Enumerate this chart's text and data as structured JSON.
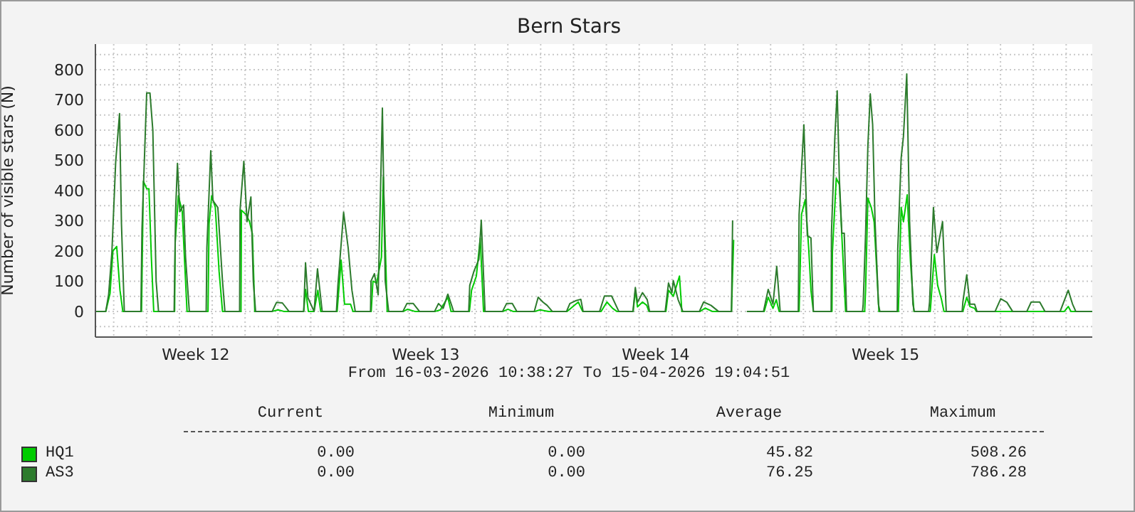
{
  "chart_data": {
    "type": "line",
    "title": "Bern Stars",
    "ylabel": "Number of visible stars (N)",
    "xlim": [
      "2026-03-16T10:38",
      "2026-04-15T19:04"
    ],
    "xticks": [
      {
        "value": "2026-03-17T00:00",
        "label": null
      },
      {
        "value": "2026-03-18T00:00",
        "label": null
      },
      {
        "value": "2026-03-19T00:00",
        "label": null
      },
      {
        "value": "2026-03-19T12:00",
        "label": "Week 12"
      },
      {
        "value": "2026-03-20T00:00",
        "label": null
      },
      {
        "value": "2026-03-21T00:00",
        "label": null
      },
      {
        "value": "2026-03-22T00:00",
        "label": null
      },
      {
        "value": "2026-03-23T00:00",
        "label": null
      },
      {
        "value": "2026-03-24T00:00",
        "label": null
      },
      {
        "value": "2026-03-25T00:00",
        "label": null
      },
      {
        "value": "2026-03-26T00:00",
        "label": null
      },
      {
        "value": "2026-03-26T12:00",
        "label": "Week 13"
      },
      {
        "value": "2026-03-27T00:00",
        "label": null
      },
      {
        "value": "2026-03-28T00:00",
        "label": null
      },
      {
        "value": "2026-03-29T00:00",
        "label": null
      },
      {
        "value": "2026-03-30T00:00",
        "label": null
      },
      {
        "value": "2026-03-31T00:00",
        "label": null
      },
      {
        "value": "2026-04-01T00:00",
        "label": null
      },
      {
        "value": "2026-04-02T00:00",
        "label": null
      },
      {
        "value": "2026-04-02T12:00",
        "label": "Week 14"
      },
      {
        "value": "2026-04-03T00:00",
        "label": null
      },
      {
        "value": "2026-04-04T00:00",
        "label": null
      },
      {
        "value": "2026-04-05T00:00",
        "label": null
      },
      {
        "value": "2026-04-06T00:00",
        "label": null
      },
      {
        "value": "2026-04-07T00:00",
        "label": null
      },
      {
        "value": "2026-04-08T00:00",
        "label": null
      },
      {
        "value": "2026-04-09T00:00",
        "label": null
      },
      {
        "value": "2026-04-09T12:00",
        "label": "Week 15"
      },
      {
        "value": "2026-04-10T00:00",
        "label": null
      },
      {
        "value": "2026-04-11T00:00",
        "label": null
      },
      {
        "value": "2026-04-12T00:00",
        "label": null
      },
      {
        "value": "2026-04-13T00:00",
        "label": null
      },
      {
        "value": "2026-04-14T00:00",
        "label": null
      },
      {
        "value": "2026-04-15T00:00",
        "label": null
      }
    ],
    "ylim": [
      -85,
      885
    ],
    "yticks": [
      {
        "value": -50,
        "label": null
      },
      0,
      {
        "value": 50,
        "label": null
      },
      100,
      {
        "value": 150,
        "label": null
      },
      200,
      {
        "value": 250,
        "label": null
      },
      300,
      {
        "value": 350,
        "label": null
      },
      400,
      {
        "value": 450,
        "label": null
      },
      500,
      {
        "value": 550,
        "label": null
      },
      600,
      {
        "value": 650,
        "label": null
      },
      700,
      {
        "value": 750,
        "label": null
      },
      800,
      {
        "value": 850,
        "label": null
      }
    ],
    "grid": true,
    "legend": "bottom",
    "series": [
      {
        "name": "HQ1",
        "color": "#00cc00",
        "x": [
          "2026-03-16T10:40",
          "2026-03-16T18:12",
          "2026-03-16T21:20",
          "2026-03-16T23:25",
          "2026-03-17T02:10",
          "2026-03-17T04:35",
          "2026-03-17T06:40",
          "2026-03-17T20:20",
          "2026-03-17T21:40",
          "2026-03-18T00:06",
          "2026-03-18T01:45",
          "2026-03-18T03:30",
          "2026-03-18T05:15",
          "2026-03-18T20:30",
          "2026-03-18T20:55",
          "2026-03-18T23:15",
          "2026-03-19T02:05",
          "2026-03-19T03:50",
          "2026-03-19T05:35",
          "2026-03-19T20:55",
          "2026-03-19T21:40",
          "2026-03-19T23:35",
          "2026-03-20T02:15",
          "2026-03-20T05:00",
          "2026-03-20T07:30",
          "2026-03-20T21:00",
          "2026-03-20T21:20",
          "2026-03-21T00:50",
          "2026-03-21T03:15",
          "2026-03-21T05:20",
          "2026-03-21T07:05",
          "2026-03-21T19:50",
          "2026-03-22T00:05",
          "2026-03-22T04:15",
          "2026-03-22T18:50",
          "2026-03-22T20:10",
          "2026-03-22T22:15",
          "2026-03-23T02:25",
          "2026-03-23T05:10",
          "2026-03-23T07:15",
          "2026-03-23T19:15",
          "2026-03-23T22:10",
          "2026-03-24T00:40",
          "2026-03-24T05:05",
          "2026-03-24T06:50",
          "2026-03-24T20:10",
          "2026-03-24T21:25",
          "2026-03-25T00:10",
          "2026-03-25T03:40",
          "2026-03-25T05:00",
          "2026-03-25T07:50",
          "2026-03-25T19:40",
          "2026-03-25T22:45",
          "2026-03-26T04:00",
          "2026-03-26T19:00",
          "2026-03-26T22:40",
          "2026-03-27T04:10",
          "2026-03-27T06:30",
          "2026-03-27T19:55",
          "2026-03-27T21:30",
          "2026-03-28T01:00",
          "2026-03-28T03:50",
          "2026-03-28T06:15",
          "2026-03-28T20:30",
          "2026-03-29T00:05",
          "2026-03-29T03:45",
          "2026-03-29T19:50",
          "2026-03-29T23:30",
          "2026-03-30T05:45",
          "2026-03-30T19:15",
          "2026-03-31T03:30",
          "2026-03-31T05:35",
          "2026-03-31T06:40",
          "2026-03-31T20:10",
          "2026-04-01T00:25",
          "2026-04-01T04:35",
          "2026-04-01T07:40",
          "2026-04-01T19:35",
          "2026-04-01T21:10",
          "2026-04-01T22:45",
          "2026-04-02T02:25",
          "2026-04-02T05:30",
          "2026-04-02T07:05",
          "2026-04-02T19:30",
          "2026-04-02T21:25",
          "2026-04-03T00:55",
          "2026-04-03T05:25",
          "2026-04-03T07:10",
          "2026-04-03T20:30",
          "2026-04-04T00:10",
          "2026-04-04T05:25",
          "2026-04-04T19:25",
          "2026-04-04T21:00",
          "2026-04-05T01:10",
          "2026-04-05T06:40",
          "2026-04-05T19:20",
          "2026-04-05T22:15",
          "2026-04-06T01:45",
          "2026-04-06T04:10",
          "2026-04-06T06:15",
          "2026-04-06T20:50",
          "2026-04-06T22:35",
          "2026-04-07T01:20",
          "2026-04-07T03:50",
          "2026-04-07T05:30",
          "2026-04-07T07:15",
          "2026-04-07T20:50",
          "2026-04-07T21:10",
          "2026-04-08T00:00",
          "2026-04-08T02:15",
          "2026-04-08T04:40",
          "2026-04-08T06:50",
          "2026-04-08T20:45",
          "2026-04-08T21:25",
          "2026-04-08T23:05",
          "2026-04-09T01:35",
          "2026-04-09T03:40",
          "2026-04-09T05:25",
          "2026-04-09T07:10",
          "2026-04-09T21:20",
          "2026-04-09T23:25",
          "2026-04-10T01:05",
          "2026-04-10T03:50",
          "2026-04-10T06:15",
          "2026-04-10T08:45",
          "2026-04-10T20:40",
          "2026-04-10T23:40",
          "2026-04-11T02:05",
          "2026-04-11T04:55",
          "2026-04-11T06:40",
          "2026-04-11T20:30",
          "2026-04-11T23:20",
          "2026-04-12T01:40",
          "2026-04-12T05:05",
          "2026-04-12T06:25",
          "2026-04-14T22:40",
          "2026-04-15T01:30",
          "2026-04-15T03:30",
          "2026-04-15T19:00"
        ],
        "values": [
          0,
          0,
          60,
          200,
          215,
          70,
          0,
          0,
          431,
          406,
          406,
          180,
          0,
          0,
          227,
          383,
          330,
          163,
          0,
          0,
          290,
          383,
          344,
          133,
          0,
          0,
          335,
          320,
          297,
          257,
          0,
          0,
          5,
          0,
          0,
          73,
          0,
          0,
          70,
          0,
          0,
          170,
          24,
          24,
          0,
          0,
          100,
          94,
          180,
          445,
          0,
          0,
          7,
          0,
          0,
          5,
          47,
          0,
          0,
          70,
          117,
          242,
          0,
          0,
          7,
          0,
          0,
          5,
          0,
          0,
          31,
          10,
          0,
          0,
          31,
          10,
          0,
          0,
          70,
          15,
          31,
          20,
          0,
          0,
          70,
          50,
          117,
          0,
          0,
          11,
          0,
          0,
          237,
          null,
          0,
          0,
          47,
          10,
          39,
          0,
          0,
          321,
          370,
          210,
          70,
          0,
          0,
          195,
          441,
          420,
          195,
          0,
          0,
          70,
          375,
          344,
          297,
          149,
          0,
          0,
          344,
          297,
          386,
          163,
          0,
          0,
          188,
          86,
          39,
          0,
          0,
          47,
          16,
          10,
          0,
          0,
          16,
          0,
          0
        ]
      },
      {
        "name": "AS3",
        "color": "#2d7b2d",
        "x": [
          "2026-03-16T10:40",
          "2026-03-16T18:12",
          "2026-03-16T20:17",
          "2026-03-16T22:40",
          "2026-03-17T01:27",
          "2026-03-17T04:16",
          "2026-03-17T05:40",
          "2026-03-17T07:45",
          "2026-03-17T19:52",
          "2026-03-17T20:40",
          "2026-03-18T00:06",
          "2026-03-18T02:30",
          "2026-03-18T04:35",
          "2026-03-18T07:00",
          "2026-03-18T08:45",
          "2026-03-18T20:10",
          "2026-03-18T21:15",
          "2026-03-18T22:35",
          "2026-03-19T00:20",
          "2026-03-19T03:05",
          "2026-03-19T04:30",
          "2026-03-19T07:15",
          "2026-03-19T19:35",
          "2026-03-19T20:05",
          "2026-03-19T22:55",
          "2026-03-20T00:30",
          "2026-03-20T04:05",
          "2026-03-20T07:30",
          "2026-03-20T09:15",
          "2026-03-20T20:00",
          "2026-03-20T20:20",
          "2026-03-20T23:05",
          "2026-03-21T01:25",
          "2026-03-21T04:15",
          "2026-03-21T06:00",
          "2026-03-21T07:40",
          "2026-03-21T19:50",
          "2026-03-21T23:00",
          "2026-03-22T03:15",
          "2026-03-22T08:05",
          "2026-03-22T18:50",
          "2026-03-22T20:10",
          "2026-03-22T21:55",
          "2026-03-23T02:25",
          "2026-03-23T04:55",
          "2026-03-23T08:20",
          "2026-03-23T18:45",
          "2026-03-23T19:50",
          "2026-03-24T00:00",
          "2026-03-24T03:20",
          "2026-03-24T06:05",
          "2026-03-24T08:30",
          "2026-03-24T19:40",
          "2026-03-24T20:00",
          "2026-03-24T22:30",
          "2026-03-25T01:15",
          "2026-03-25T04:20",
          "2026-03-25T06:25",
          "2026-03-25T08:55",
          "2026-03-25T19:20",
          "2026-03-25T22:15",
          "2026-03-26T02:55",
          "2026-03-26T07:25",
          "2026-03-26T18:30",
          "2026-03-26T21:20",
          "2026-03-27T00:45",
          "2026-03-27T04:10",
          "2026-03-27T06:55",
          "2026-03-27T08:20",
          "2026-03-27T19:25",
          "2026-03-27T20:10",
          "2026-03-27T23:15",
          "2026-03-28T02:50",
          "2026-03-28T04:35",
          "2026-03-28T07:20",
          "2026-03-28T20:10",
          "2026-03-28T23:05",
          "2026-03-29T03:15",
          "2026-03-29T06:35",
          "2026-03-29T19:20",
          "2026-03-29T22:10",
          "2026-03-30T01:35",
          "2026-03-30T04:40",
          "2026-03-30T08:30",
          "2026-03-30T18:55",
          "2026-03-30T21:20",
          "2026-03-31T01:25",
          "2026-03-31T05:20",
          "2026-03-31T07:00",
          "2026-03-31T19:05",
          "2026-03-31T22:35",
          "2026-04-01T03:50",
          "2026-04-01T09:05",
          "2026-04-01T19:25",
          "2026-04-01T21:10",
          "2026-04-01T22:45",
          "2026-04-02T02:25",
          "2026-04-02T05:50",
          "2026-04-02T07:35",
          "2026-04-02T19:00",
          "2026-04-02T21:25",
          "2026-04-02T23:55",
          "2026-04-03T00:55",
          "2026-04-03T04:25",
          "2026-04-03T07:50",
          "2026-04-03T20:00",
          "2026-04-03T23:05",
          "2026-04-04T04:25",
          "2026-04-04T09:55",
          "2026-04-04T19:25",
          "2026-04-04T20:15",
          "2026-04-05T01:10",
          "2026-04-05T06:40",
          "2026-04-05T18:50",
          "2026-04-05T22:15",
          "2026-04-06T01:45",
          "2026-04-06T04:30",
          "2026-04-06T07:00",
          "2026-04-06T20:15",
          "2026-04-06T20:50",
          "2026-04-07T00:20",
          "2026-04-07T02:50",
          "2026-04-07T05:30",
          "2026-04-07T07:15",
          "2026-04-07T20:15",
          "2026-04-07T20:30",
          "2026-04-07T22:55",
          "2026-04-08T00:40",
          "2026-04-08T02:15",
          "2026-04-08T04:05",
          "2026-04-08T05:50",
          "2026-04-08T07:30",
          "2026-04-08T19:10",
          "2026-04-08T19:40",
          "2026-04-08T21:25",
          "2026-04-08T23:05",
          "2026-04-09T00:50",
          "2026-04-09T02:35",
          "2026-04-09T04:20",
          "2026-04-09T06:50",
          "2026-04-09T07:50",
          "2026-04-09T20:35",
          "2026-04-09T20:55",
          "2026-04-09T23:25",
          "2026-04-10T01:05",
          "2026-04-10T03:30",
          "2026-04-10T05:35",
          "2026-04-10T08:00",
          "2026-04-10T09:00",
          "2026-04-10T19:30",
          "2026-04-10T20:10",
          "2026-04-10T23:00",
          "2026-04-11T01:30",
          "2026-04-11T05:40",
          "2026-04-11T08:20",
          "2026-04-11T20:00",
          "2026-04-11T20:30",
          "2026-04-11T23:20",
          "2026-04-12T01:40",
          "2026-04-12T05:05",
          "2026-04-12T06:50",
          "2026-04-12T20:05",
          "2026-04-13T00:10",
          "2026-04-13T04:40",
          "2026-04-13T08:50",
          "2026-04-13T19:15",
          "2026-04-13T22:25",
          "2026-04-14T04:40",
          "2026-04-14T08:30",
          "2026-04-14T19:35",
          "2026-04-15T01:30",
          "2026-04-15T04:35",
          "2026-04-15T07:00",
          "2026-04-15T19:00"
        ],
        "values": [
          0,
          0,
          55,
          195,
          495,
          655,
          290,
          0,
          0,
          273,
          723,
          723,
          600,
          100,
          0,
          0,
          335,
          490,
          330,
          352,
          180,
          0,
          0,
          210,
          532,
          367,
          344,
          100,
          0,
          0,
          335,
          497,
          297,
          379,
          100,
          0,
          0,
          30,
          28,
          0,
          0,
          161,
          45,
          0,
          141,
          0,
          0,
          86,
          328,
          210,
          70,
          0,
          0,
          100,
          125,
          55,
          673,
          100,
          0,
          0,
          26,
          26,
          0,
          0,
          26,
          10,
          57,
          20,
          0,
          0,
          86,
          133,
          172,
          302,
          0,
          0,
          26,
          26,
          0,
          0,
          47,
          31,
          20,
          0,
          0,
          26,
          35,
          40,
          0,
          0,
          51,
          51,
          0,
          0,
          79,
          30,
          62,
          39,
          0,
          0,
          94,
          62,
          102,
          39,
          0,
          0,
          31,
          20,
          0,
          0,
          301,
          null,
          0,
          0,
          73,
          24,
          149,
          0,
          0,
          321,
          618,
          250,
          243,
          0,
          0,
          262,
          571,
          730,
          438,
          259,
          259,
          0,
          0,
          24,
          257,
          547,
          720,
          618,
          297,
          24,
          0,
          0,
          204,
          508,
          579,
          786,
          297,
          24,
          0,
          0,
          31,
          344,
          195,
          297,
          0,
          0,
          31,
          121,
          24,
          24,
          0,
          0,
          42,
          30,
          0,
          0,
          31,
          31,
          0,
          0,
          70,
          25,
          0,
          0
        ]
      }
    ],
    "annotations": [
      "From 16-03-2026 10:38:27 To 15-04-2026 19:04:51",
      "Current",
      "Minimum",
      "Average",
      "Maximum",
      "0.00",
      "0.00",
      "45.82",
      "508.26",
      "0.00",
      "0.00",
      "76.25",
      "786.28"
    ]
  }
}
